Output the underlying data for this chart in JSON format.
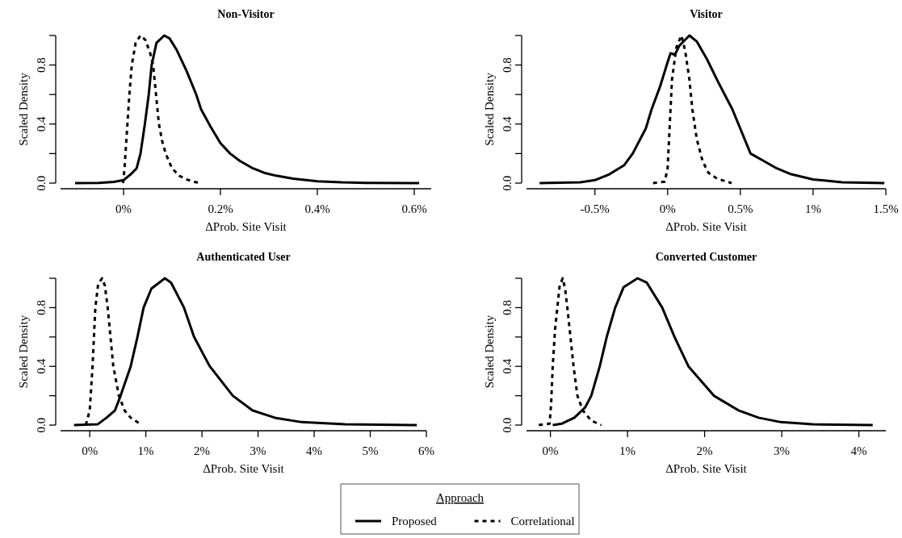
{
  "chart_data": [
    {
      "type": "line",
      "title": "Non-Visitor",
      "xlabel": "ΔProb. Site Visit",
      "ylabel": "Scaled Density",
      "xlim": [
        -0.13,
        0.635
      ],
      "ylim": [
        0,
        1
      ],
      "legend": "bottom",
      "legend_title": "Approach",
      "xticks": [
        {
          "value": 0,
          "label": "0%"
        },
        {
          "value": 0.2,
          "label": "0.2%"
        },
        {
          "value": 0.4,
          "label": "0.4%"
        },
        {
          "value": 0.6,
          "label": "0.6%"
        }
      ],
      "yticks": [
        {
          "value": 0,
          "label": "0.0"
        },
        {
          "value": 0.2,
          "label": null
        },
        {
          "value": 0.4,
          "label": "0.4"
        },
        {
          "value": 0.6,
          "label": null
        },
        {
          "value": 0.8,
          "label": "0.8"
        },
        {
          "value": 1,
          "label": null
        }
      ],
      "series": [
        {
          "name": "Proposed",
          "color": "#000000",
          "line_style": "solid",
          "x": [
            -0.1,
            -0.05,
            -0.02,
            0,
            0.015,
            0.027,
            0.035,
            0.044,
            0.052,
            0.058,
            0.068,
            0.084,
            0.095,
            0.11,
            0.13,
            0.15,
            0.16,
            0.18,
            0.2,
            0.22,
            0.24,
            0.267,
            0.29,
            0.315,
            0.35,
            0.4,
            0.45,
            0.5,
            0.61
          ],
          "values": [
            0,
            0.002,
            0.008,
            0.02,
            0.06,
            0.1,
            0.2,
            0.4,
            0.6,
            0.8,
            0.95,
            1,
            0.98,
            0.9,
            0.76,
            0.6,
            0.5,
            0.38,
            0.27,
            0.2,
            0.15,
            0.1,
            0.07,
            0.05,
            0.03,
            0.012,
            0.005,
            0.002,
            0
          ]
        },
        {
          "name": "Correlational",
          "color": "#000000",
          "line_style": "dashed",
          "x": [
            -0.001,
            0.002,
            0.005,
            0.008,
            0.012,
            0.017,
            0.025,
            0.035,
            0.045,
            0.055,
            0.061,
            0.067,
            0.073,
            0.08,
            0.087,
            0.1,
            0.115,
            0.13,
            0.145,
            0.157
          ],
          "values": [
            0,
            0.1,
            0.25,
            0.4,
            0.6,
            0.8,
            0.95,
            1,
            0.97,
            0.88,
            0.8,
            0.6,
            0.4,
            0.28,
            0.2,
            0.1,
            0.05,
            0.025,
            0.008,
            0.002
          ]
        }
      ]
    },
    {
      "type": "line",
      "title": "Visitor",
      "xlabel": "ΔProb. Site Visit",
      "ylabel": "Scaled Density",
      "xlim": [
        -0.97,
        1.5
      ],
      "ylim": [
        0,
        1
      ],
      "xticks": [
        {
          "value": -0.5,
          "label": "-0.5%"
        },
        {
          "value": 0,
          "label": "0%"
        },
        {
          "value": 0.5,
          "label": "0.5%"
        },
        {
          "value": 1,
          "label": "1%"
        },
        {
          "value": 1.5,
          "label": "1.5%"
        }
      ],
      "yticks": [
        {
          "value": 0,
          "label": "0.0"
        },
        {
          "value": 0.2,
          "label": null
        },
        {
          "value": 0.4,
          "label": "0.4"
        },
        {
          "value": 0.6,
          "label": null
        },
        {
          "value": 0.8,
          "label": "0.8"
        },
        {
          "value": 1,
          "label": null
        }
      ],
      "series": [
        {
          "color": "#000000",
          "line_style": "solid",
          "x": [
            -0.88,
            -0.6,
            -0.5,
            -0.4,
            -0.3,
            -0.24,
            -0.15,
            -0.11,
            -0.05,
            0,
            0.02,
            0.05,
            0.08,
            0.15,
            0.2,
            0.27,
            0.35,
            0.445,
            0.57,
            0.66,
            0.75,
            0.85,
            1,
            1.2,
            1.49
          ],
          "values": [
            0,
            0.005,
            0.02,
            0.06,
            0.12,
            0.2,
            0.37,
            0.5,
            0.66,
            0.82,
            0.88,
            0.87,
            0.93,
            1,
            0.96,
            0.84,
            0.68,
            0.5,
            0.2,
            0.15,
            0.1,
            0.06,
            0.025,
            0.006,
            0
          ]
        },
        {
          "color": "#000000",
          "line_style": "dashed",
          "x": [
            -0.1,
            -0.02,
            0,
            0.015,
            0.03,
            0.06,
            0.095,
            0.12,
            0.15,
            0.17,
            0.2,
            0.24,
            0.28,
            0.34,
            0.44
          ],
          "values": [
            0,
            0.01,
            0.1,
            0.4,
            0.7,
            0.92,
            1,
            0.9,
            0.7,
            0.5,
            0.3,
            0.15,
            0.07,
            0.03,
            0
          ]
        }
      ]
    },
    {
      "type": "line",
      "title": "Authenticated User",
      "xlabel": "ΔProb. Site Visit",
      "ylabel": "Scaled Density",
      "xlim": [
        -0.52,
        6
      ],
      "ylim": [
        0,
        1
      ],
      "xticks": [
        {
          "value": 0,
          "label": "0%"
        },
        {
          "value": 1,
          "label": "1%"
        },
        {
          "value": 2,
          "label": "2%"
        },
        {
          "value": 3,
          "label": "3%"
        },
        {
          "value": 4,
          "label": "4%"
        },
        {
          "value": 5,
          "label": "5%"
        },
        {
          "value": 6,
          "label": "6%"
        }
      ],
      "yticks": [
        {
          "value": 0,
          "label": "0.0"
        },
        {
          "value": 0.2,
          "label": null
        },
        {
          "value": 0.4,
          "label": "0.4"
        },
        {
          "value": 0.6,
          "label": null
        },
        {
          "value": 0.8,
          "label": "0.8"
        },
        {
          "value": 1,
          "label": null
        }
      ],
      "series": [
        {
          "color": "#000000",
          "line_style": "solid",
          "x": [
            -0.28,
            0.14,
            0.3,
            0.45,
            0.55,
            0.73,
            0.85,
            0.96,
            1.1,
            1.34,
            1.45,
            1.68,
            1.86,
            2.14,
            2.55,
            2.9,
            3.3,
            3.78,
            4.55,
            5.83
          ],
          "values": [
            0,
            0.005,
            0.05,
            0.1,
            0.2,
            0.4,
            0.6,
            0.8,
            0.93,
            1,
            0.97,
            0.8,
            0.6,
            0.4,
            0.2,
            0.1,
            0.05,
            0.02,
            0.005,
            0
          ]
        },
        {
          "color": "#000000",
          "line_style": "dashed",
          "x": [
            -0.07,
            0,
            0.05,
            0.1,
            0.15,
            0.22,
            0.27,
            0.32,
            0.37,
            0.42,
            0.52,
            0.62,
            0.73,
            0.93
          ],
          "values": [
            0,
            0.1,
            0.4,
            0.8,
            0.96,
            1,
            0.95,
            0.8,
            0.6,
            0.4,
            0.2,
            0.1,
            0.05,
            0
          ]
        }
      ]
    },
    {
      "type": "line",
      "title": "Converted Customer",
      "xlabel": "ΔProb. Site Visit",
      "ylabel": "Scaled Density",
      "xlim": [
        -0.31,
        4.35
      ],
      "ylim": [
        0,
        1
      ],
      "xticks": [
        {
          "value": 0,
          "label": "0%"
        },
        {
          "value": 1,
          "label": "1%"
        },
        {
          "value": 2,
          "label": "2%"
        },
        {
          "value": 3,
          "label": "3%"
        },
        {
          "value": 4,
          "label": "4%"
        }
      ],
      "yticks": [
        {
          "value": 0,
          "label": "0.0"
        },
        {
          "value": 0.2,
          "label": null
        },
        {
          "value": 0.4,
          "label": "0.4"
        },
        {
          "value": 0.6,
          "label": null
        },
        {
          "value": 0.8,
          "label": "0.8"
        },
        {
          "value": 1,
          "label": null
        }
      ],
      "series": [
        {
          "color": "#000000",
          "line_style": "solid",
          "x": [
            0.03,
            0.15,
            0.31,
            0.45,
            0.53,
            0.64,
            0.73,
            0.84,
            0.95,
            1.13,
            1.25,
            1.45,
            1.61,
            1.79,
            2.12,
            2.44,
            2.7,
            2.99,
            3.4,
            4.18
          ],
          "values": [
            0,
            0.01,
            0.05,
            0.12,
            0.2,
            0.4,
            0.6,
            0.8,
            0.94,
            1,
            0.97,
            0.8,
            0.6,
            0.4,
            0.2,
            0.1,
            0.05,
            0.02,
            0.005,
            0
          ]
        },
        {
          "color": "#000000",
          "line_style": "dashed",
          "x": [
            -0.15,
            -0.01,
            0.01,
            0.03,
            0.06,
            0.09,
            0.12,
            0.16,
            0.19,
            0.22,
            0.26,
            0.3,
            0.35,
            0.42,
            0.53,
            0.66
          ],
          "values": [
            0,
            0.01,
            0.15,
            0.4,
            0.65,
            0.8,
            0.95,
            1,
            0.93,
            0.8,
            0.6,
            0.4,
            0.2,
            0.1,
            0.03,
            0
          ]
        }
      ]
    }
  ]
}
